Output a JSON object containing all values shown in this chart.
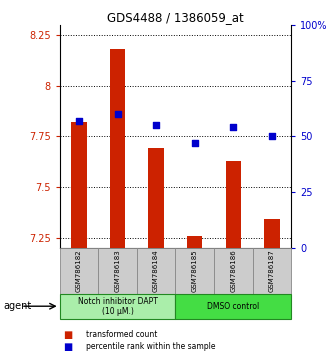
{
  "title": "GDS4488 / 1386059_at",
  "samples": [
    "GSM786182",
    "GSM786183",
    "GSM786184",
    "GSM786185",
    "GSM786186",
    "GSM786187"
  ],
  "red_values": [
    7.82,
    8.18,
    7.69,
    7.26,
    7.63,
    7.34
  ],
  "blue_values_pct": [
    57,
    60,
    55,
    47,
    54,
    50
  ],
  "ylim_left": [
    7.2,
    8.3
  ],
  "ylim_right": [
    0,
    100
  ],
  "yticks_left": [
    7.25,
    7.5,
    7.75,
    8.0,
    8.25
  ],
  "ytick_labels_left": [
    "7.25",
    "7.5",
    "7.75",
    "8",
    "8.25"
  ],
  "yticks_right": [
    0,
    25,
    50,
    75,
    100
  ],
  "ytick_labels_right": [
    "0",
    "25",
    "50",
    "75",
    "100%"
  ],
  "group1_label": "Notch inhibitor DAPT\n(10 μM.)",
  "group2_label": "DMSO control",
  "legend1_label": "transformed count",
  "legend2_label": "percentile rank within the sample",
  "agent_label": "agent",
  "bar_color": "#cc2200",
  "dot_color": "#0000cc",
  "group1_color": "#aaeeaa",
  "group2_color": "#44dd44",
  "bg_color": "#ffffff",
  "grid_color": "#000000",
  "tick_label_color_left": "#cc2200",
  "tick_label_color_right": "#0000cc",
  "base_value": 7.2,
  "bar_width": 0.4
}
